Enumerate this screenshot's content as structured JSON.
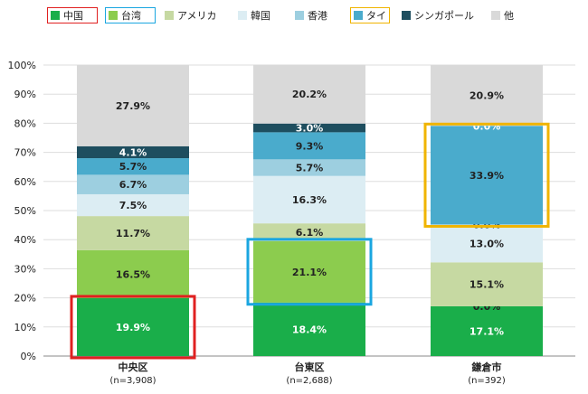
{
  "chart_data": {
    "type": "bar",
    "stacked": true,
    "title": "",
    "xlabel": "",
    "ylabel": "",
    "ylim": [
      0,
      100
    ],
    "yticks": [
      "0%",
      "10%",
      "20%",
      "30%",
      "40%",
      "50%",
      "60%",
      "70%",
      "80%",
      "90%",
      "100%"
    ],
    "grid": true,
    "legend_position": "top",
    "categories": [
      {
        "name": "中央区",
        "n": "(n=3,908)"
      },
      {
        "name": "台東区",
        "n": "(n=2,688)"
      },
      {
        "name": "鎌倉市",
        "n": "(n=392)"
      }
    ],
    "series": [
      {
        "name": "中国",
        "color": "#1aae4a",
        "values": [
          19.9,
          18.4,
          17.1
        ],
        "labels": [
          "19.9%",
          "18.4%",
          "17.1%"
        ]
      },
      {
        "name": "台湾",
        "color": "#8ccc4e",
        "values": [
          16.5,
          21.1,
          0.0
        ],
        "labels": [
          "16.5%",
          "21.1%",
          "0.0%"
        ]
      },
      {
        "name": "アメリカ",
        "color": "#c6d9a2",
        "values": [
          11.7,
          6.1,
          15.1
        ],
        "labels": [
          "11.7%",
          "6.1%",
          "15.1%"
        ]
      },
      {
        "name": "韓国",
        "color": "#dcedf3",
        "values": [
          7.5,
          16.3,
          13.0
        ],
        "labels": [
          "7.5%",
          "16.3%",
          "13.0%"
        ]
      },
      {
        "name": "香港",
        "color": "#9dcfe0",
        "values": [
          6.7,
          5.7,
          0.0
        ],
        "labels": [
          "6.7%",
          "5.7%",
          "0.0%"
        ]
      },
      {
        "name": "タイ",
        "color": "#4aabcc",
        "values": [
          5.7,
          9.3,
          33.9
        ],
        "labels": [
          "5.7%",
          "9.3%",
          "33.9%"
        ]
      },
      {
        "name": "シンガポール",
        "color": "#1e4e5f",
        "values": [
          4.1,
          3.0,
          0.0
        ],
        "labels": [
          "4.1%",
          "3.0%",
          "0.0%"
        ]
      },
      {
        "name": "他",
        "color": "#d9d9d9",
        "values": [
          27.9,
          20.2,
          20.9
        ],
        "labels": [
          "27.9%",
          "20.2%",
          "20.9%"
        ]
      }
    ],
    "highlights": [
      {
        "category": 0,
        "series": 0,
        "color": "#e02020"
      },
      {
        "category": 1,
        "series": 1,
        "color": "#1aa6e0"
      },
      {
        "category": 2,
        "series": 5,
        "color": "#f0b400"
      }
    ],
    "legend_box_colors": {
      "中国": "#e02020",
      "台湾": "#1aa6e0",
      "タイ": "#f0b400"
    },
    "colors": {
      "axis": "#888888",
      "grid": "#dddddd",
      "text": "#222222",
      "light_label": "#ffffff"
    }
  }
}
